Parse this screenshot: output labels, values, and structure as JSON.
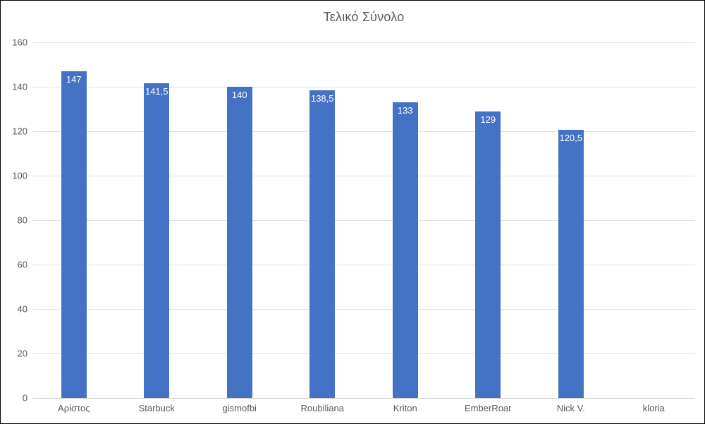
{
  "chart_data": {
    "type": "bar",
    "title": "Τελικό Σύνολο",
    "categories": [
      "Αρίστος",
      "Starbuck",
      "gismofbi",
      "Roubiliana",
      "Kriton",
      "EmberRoar",
      "Nick V.",
      "kloria"
    ],
    "values": [
      147,
      141.5,
      140,
      138.5,
      133,
      129,
      120.5,
      0
    ],
    "value_labels": [
      "147",
      "141,5",
      "140",
      "138,5",
      "133",
      "129",
      "120,5",
      ""
    ],
    "xlabel": "",
    "ylabel": "",
    "ylim": [
      0,
      160
    ],
    "y_ticks": [
      0,
      20,
      40,
      60,
      80,
      100,
      120,
      140,
      160
    ],
    "grid": true,
    "legend_position": "none",
    "decimal_separator": ",",
    "colors": {
      "bar_fill": "#4472C4",
      "bar_value_label": "#FFFFFF",
      "title_text": "#595959",
      "axis_text": "#595959",
      "gridline": "#E2E2E2",
      "axis_line": "#C6C6C6",
      "background": "#FFFFFF",
      "frame_border": "#000000"
    }
  }
}
